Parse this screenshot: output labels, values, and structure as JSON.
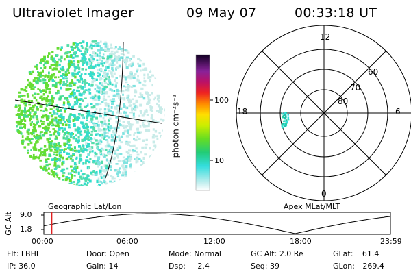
{
  "header": {
    "title": "Ultraviolet Imager",
    "date": "09 May 07",
    "time": "00:33:18 UT"
  },
  "colorbar": {
    "unit_label": "photon cm⁻²s⁻¹",
    "ticks": [
      "100",
      "10"
    ]
  },
  "polar": {
    "lat_labels": [
      "60",
      "70",
      "80"
    ],
    "mlt_labels": {
      "top": "12",
      "left": "18",
      "right": "6",
      "bottom": "0"
    }
  },
  "labels": {
    "left_projection": "Geographic Lat/Lon",
    "right_projection": "Apex MLat/MLT",
    "alt_axis": "GC Alt",
    "alt_ticks": [
      "9.0",
      "1.8"
    ]
  },
  "timeline": {
    "ticks": [
      "00:00",
      "06:00",
      "12:00",
      "18:00",
      "23:59"
    ],
    "current_fraction": 0.023
  },
  "stats": {
    "row1": [
      {
        "key": "Flt:",
        "value": "LBHL"
      },
      {
        "key": "Door:",
        "value": "Open"
      },
      {
        "key": "Mode:",
        "value": "Normal"
      },
      {
        "key": "GC Alt:",
        "value": "2.0 Re"
      },
      {
        "key": "GLat:",
        "value": "61.4"
      }
    ],
    "row2": [
      {
        "key": "IP:",
        "value": "36.0"
      },
      {
        "key": "Gain:",
        "value": "14"
      },
      {
        "key": "Dsp:",
        "value": "2.4"
      },
      {
        "key": "Seq:",
        "value": "39"
      },
      {
        "key": "GLon:",
        "value": "269.4"
      }
    ]
  },
  "colors": {
    "cursor": "#e02020",
    "bright": "#66dd33",
    "mid": "#33ddcc",
    "faint": "#c8ebe8"
  }
}
